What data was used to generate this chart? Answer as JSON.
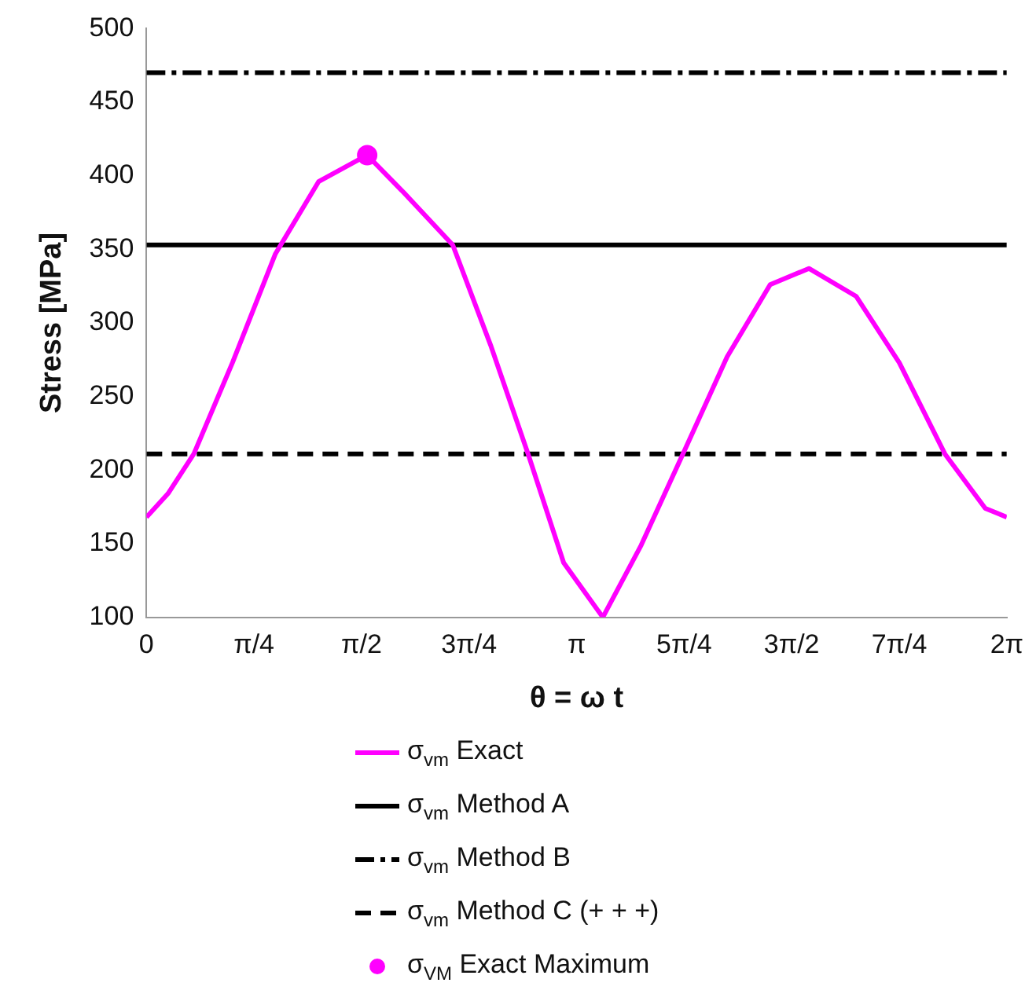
{
  "chart_data": {
    "type": "line",
    "xlabel": "θ = ω t",
    "ylabel": "Stress [MPa]",
    "xlim": [
      0,
      6.283
    ],
    "ylim": [
      100,
      500
    ],
    "xticks": [
      0,
      {
        "value": 0.785,
        "label": "π/4"
      },
      {
        "value": 1.571,
        "label": "π/2"
      },
      {
        "value": 2.356,
        "label": "3π/4"
      },
      {
        "value": 3.142,
        "label": "π"
      },
      {
        "value": 3.927,
        "label": "5π/4"
      },
      {
        "value": 4.712,
        "label": "3π/2"
      },
      {
        "value": 5.498,
        "label": "7π/4"
      },
      {
        "value": 6.283,
        "label": "2π"
      }
    ],
    "yticks": [
      100,
      150,
      200,
      250,
      300,
      350,
      400,
      450,
      500
    ],
    "grid": false,
    "legend": "bottom",
    "marker": "none",
    "series": [
      {
        "name": "σ$_{vm}$ Exact",
        "color": "#ff00ff",
        "line_style": "solid",
        "x": [
          0,
          0.157,
          0.346,
          0.628,
          0.942,
          1.257,
          1.612,
          1.885,
          2.237,
          2.513,
          2.787,
          3.047,
          3.333,
          3.613,
          3.918,
          4.241,
          4.555,
          4.838,
          5.184,
          5.498,
          5.831,
          6.126,
          6.283
        ],
        "values": [
          168,
          184,
          211,
          273,
          347,
          396,
          414,
          388,
          353,
          285,
          211,
          137,
          100,
          149,
          211,
          277,
          326,
          337,
          318,
          273,
          211,
          174,
          168
        ]
      },
      {
        "name": "σ$_{vm}$ Method A",
        "color": "#000000",
        "line_style": "solid",
        "x": [
          0,
          6.283
        ],
        "values": [
          353,
          353
        ]
      },
      {
        "name": "σ$_{vm}$ Method B",
        "color": "#000000",
        "line_style": "dashdot",
        "x": [
          0,
          6.283
        ],
        "values": [
          470,
          470
        ]
      },
      {
        "name": "σ$_{vm}$ Method C (+ + +)",
        "color": "#000000",
        "line_style": "dashed",
        "x": [
          0,
          6.283
        ],
        "values": [
          211,
          211
        ]
      },
      {
        "name": "σ$_{VM}$ Exact Maximum",
        "type": "scatter",
        "marker": "circle",
        "color": "#ff00ff",
        "x": [
          1.612
        ],
        "values": [
          414
        ]
      }
    ]
  }
}
